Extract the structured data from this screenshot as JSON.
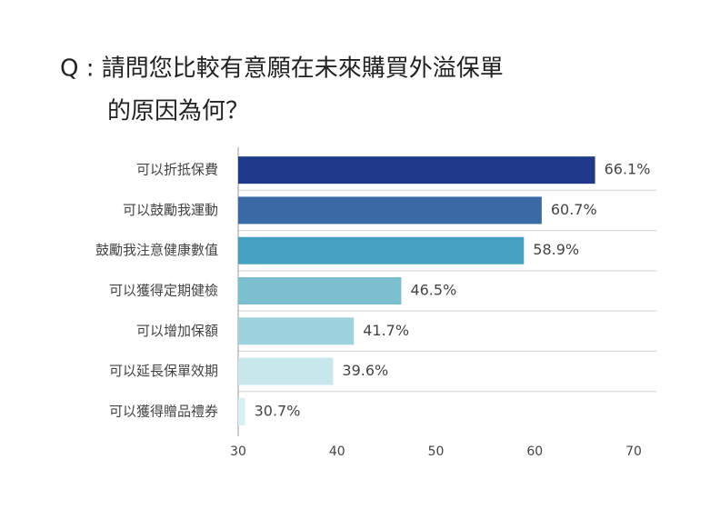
{
  "chart_data": {
    "type": "bar",
    "title": [
      "Q : 請問您比較有意願在未來購買外溢保單",
      "的原因為何？"
    ],
    "categories": [
      "可以折抵保費",
      "可以鼓勵我運動",
      "鼓勵我注意健康數值",
      "可以獲得定期健檢",
      "可以增加保額",
      "可以延長保單效期",
      "可以獲得贈品禮券"
    ],
    "values": [
      66.1,
      60.7,
      58.9,
      46.5,
      41.7,
      39.6,
      30.7
    ],
    "value_labels": [
      "66.1%",
      "60.7%",
      "58.9%",
      "46.5%",
      "41.7%",
      "39.6%",
      "30.7%"
    ],
    "colors": [
      "#1f3a8a",
      "#3a6aa6",
      "#45a0c2",
      "#7cc0cf",
      "#9fd2df",
      "#c7e7ed",
      "#d9eff3"
    ],
    "xlim": [
      30,
      70
    ],
    "xticks": [
      30,
      40,
      50,
      60,
      70
    ]
  }
}
